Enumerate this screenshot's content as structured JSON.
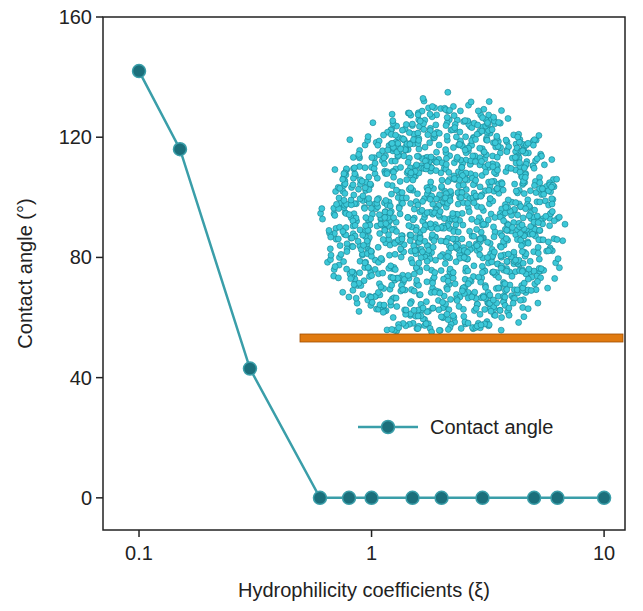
{
  "chart_data": {
    "type": "line",
    "x_label": "Hydrophilicity coefficients (ξ)",
    "y_label": "Contact angle (°)",
    "log": "x",
    "xlim": [
      0.07,
      12.3
    ],
    "ylim": [
      -10.7,
      160
    ],
    "xticks": [
      0.1,
      1,
      10
    ],
    "yticks": [
      0,
      40,
      80,
      120,
      160
    ],
    "x": [
      0.1,
      0.15,
      0.3,
      0.6,
      0.8,
      1,
      1.5,
      2,
      3,
      5,
      6.3,
      10
    ],
    "series": [
      {
        "name": "Contact angle",
        "color": "#3a9ea9",
        "marker": "circle",
        "values": [
          142,
          116,
          43,
          0,
          0,
          0,
          0,
          0,
          0,
          0,
          0,
          0
        ]
      }
    ],
    "legend": "lower right",
    "grid": false
  }
}
